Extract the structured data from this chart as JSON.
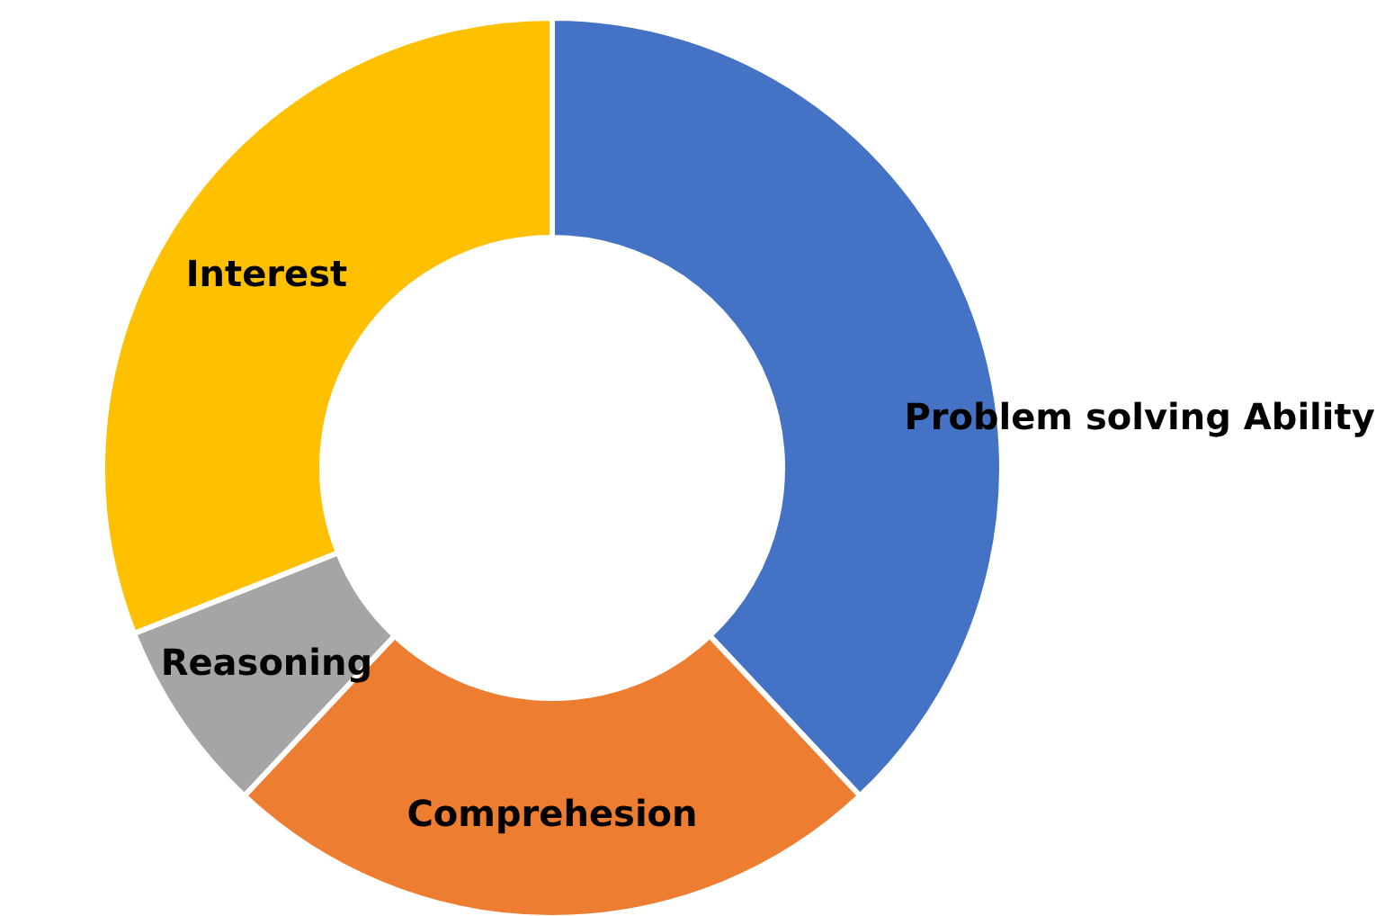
{
  "chart_data": {
    "type": "donut",
    "categories": [
      "Problem solving Ability",
      "Comprehesion",
      "Reasoning",
      "Interest"
    ],
    "values": [
      38,
      24,
      7,
      31
    ],
    "colors": [
      "#4472c4",
      "#ed7d31",
      "#a5a5a5",
      "#ffc000"
    ],
    "legend": false
  }
}
